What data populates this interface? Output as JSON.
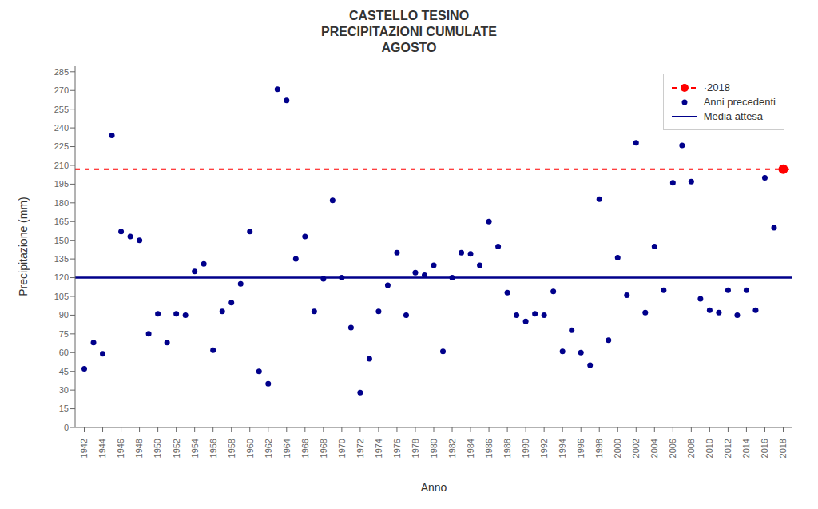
{
  "chart_data": {
    "type": "scatter",
    "title": "CASTELLO TESINO\nPRECIPITAZIONI CUMULATE\nAGOSTO",
    "x_label": "Anno",
    "y_label": "Precipitazione (mm)",
    "xlim": [
      1941,
      2019
    ],
    "xticks": [
      1942,
      1944,
      1946,
      1948,
      1950,
      1952,
      1954,
      1956,
      1958,
      1960,
      1962,
      1964,
      1966,
      1968,
      1970,
      1972,
      1974,
      1976,
      1978,
      1980,
      1982,
      1984,
      1986,
      1988,
      1990,
      1992,
      1994,
      1996,
      1998,
      2000,
      2002,
      2004,
      2006,
      2008,
      2010,
      2012,
      2014,
      2016,
      2018
    ],
    "ylim": [
      0,
      290
    ],
    "yticks": [
      0,
      15,
      30,
      45,
      60,
      75,
      90,
      105,
      120,
      135,
      150,
      165,
      180,
      195,
      210,
      225,
      240,
      255,
      270,
      285
    ],
    "grid": false,
    "legend": "upper right",
    "series": [
      {
        "name": "·2018",
        "type": "scatter",
        "color": "#FF0000",
        "line_style": "dashed",
        "x": [
          2018
        ],
        "values": [
          207
        ]
      },
      {
        "name": "Anni precedenti",
        "type": "scatter",
        "color": "#00008B",
        "x": [
          1942,
          1943,
          1944,
          1945,
          1946,
          1947,
          1948,
          1949,
          1950,
          1951,
          1952,
          1953,
          1954,
          1955,
          1956,
          1957,
          1958,
          1959,
          1960,
          1961,
          1962,
          1963,
          1964,
          1965,
          1966,
          1967,
          1968,
          1969,
          1970,
          1971,
          1972,
          1973,
          1974,
          1975,
          1976,
          1977,
          1978,
          1979,
          1980,
          1981,
          1982,
          1983,
          1984,
          1985,
          1986,
          1987,
          1988,
          1989,
          1990,
          1991,
          1992,
          1993,
          1994,
          1995,
          1996,
          1997,
          1998,
          1999,
          2000,
          2001,
          2002,
          2003,
          2004,
          2005,
          2006,
          2007,
          2008,
          2009,
          2010,
          2011,
          2012,
          2013,
          2014,
          2015,
          2016,
          2017
        ],
        "values": [
          47,
          68,
          59,
          234,
          157,
          153,
          150,
          75,
          91,
          68,
          91,
          90,
          125,
          131,
          62,
          93,
          100,
          115,
          157,
          45,
          35,
          271,
          262,
          135,
          153,
          93,
          119,
          182,
          120,
          80,
          28,
          55,
          93,
          114,
          140,
          90,
          124,
          122,
          130,
          61,
          120,
          140,
          139,
          130,
          165,
          145,
          108,
          90,
          85,
          91,
          90,
          109,
          61,
          78,
          60,
          50,
          183,
          70,
          136,
          106,
          228,
          92,
          145,
          110,
          196,
          226,
          197,
          103,
          94,
          92,
          110,
          90,
          110,
          94,
          200,
          160
        ]
      },
      {
        "name": "Media attesa",
        "type": "hline",
        "color": "#00008B",
        "values": [
          120
        ]
      }
    ]
  }
}
